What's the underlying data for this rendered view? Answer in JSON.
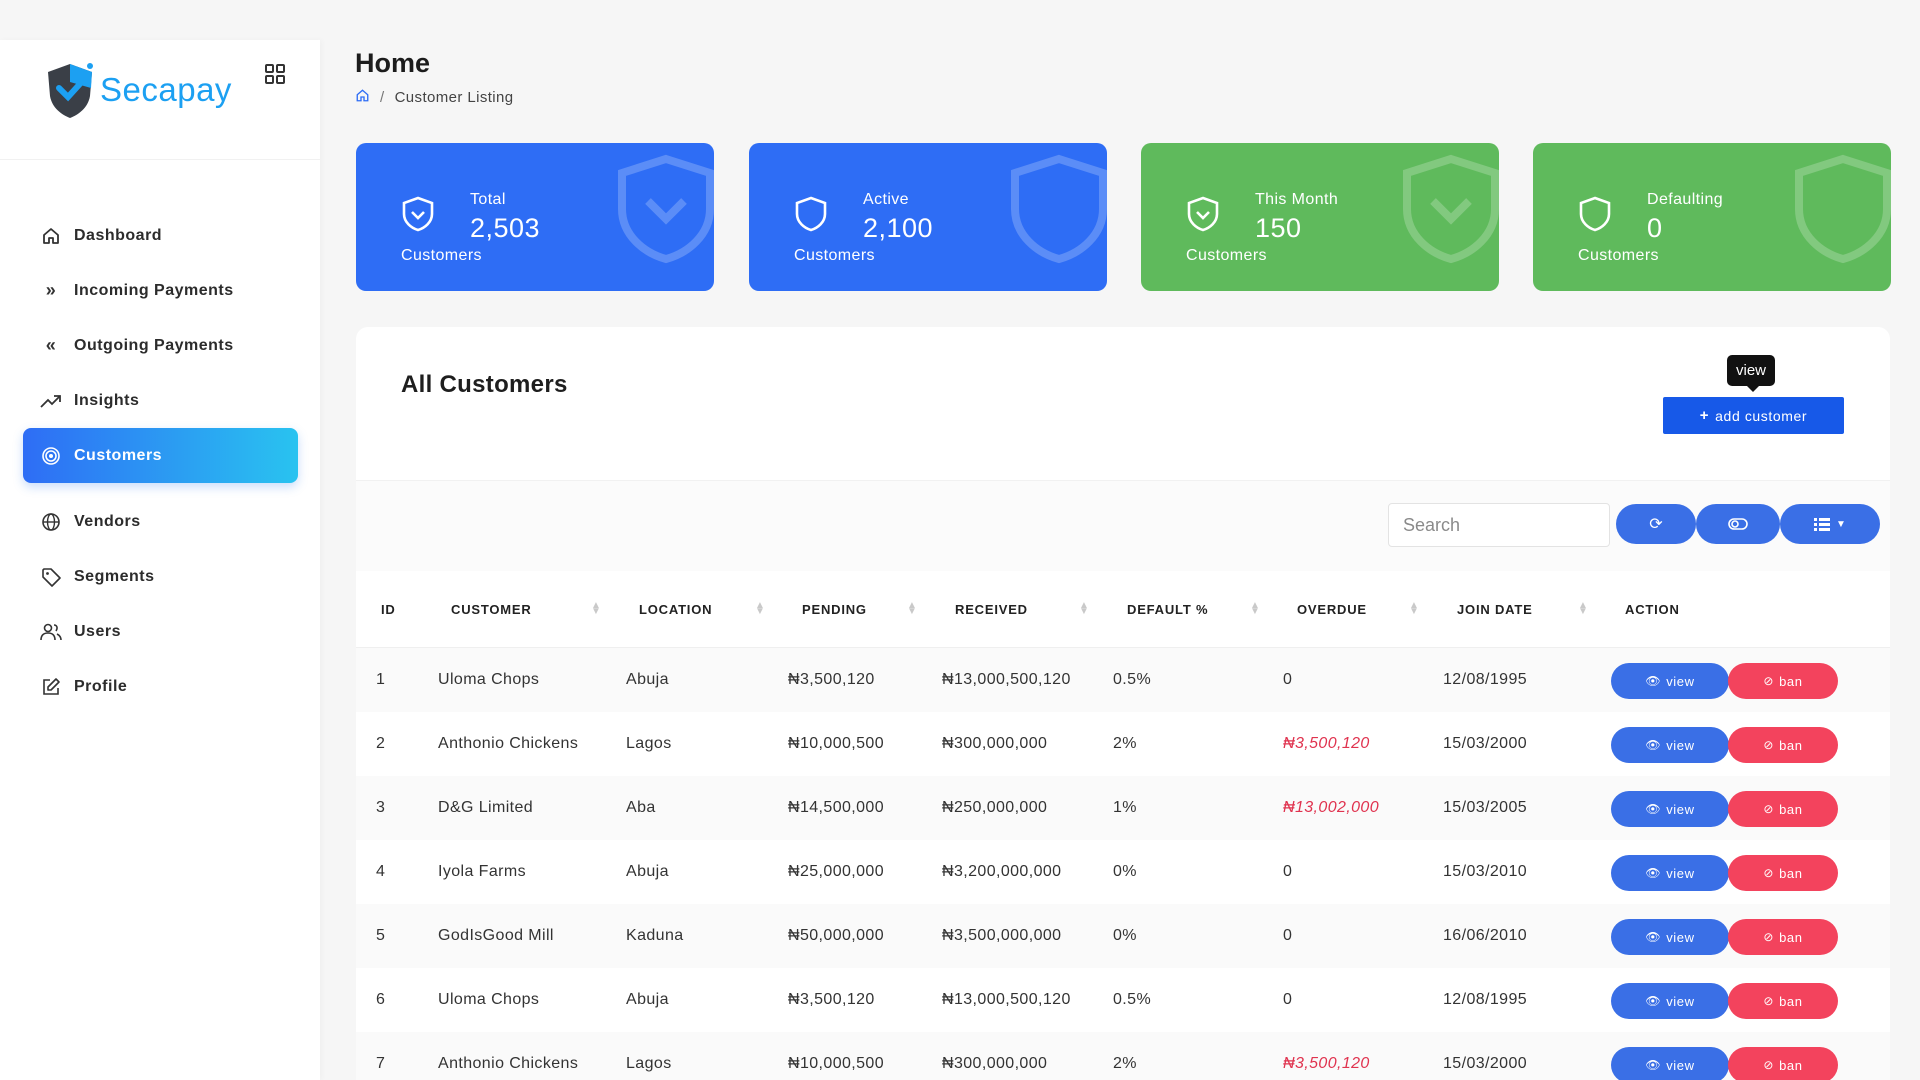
{
  "app": {
    "name": "Secapay"
  },
  "header": {
    "title": "Home",
    "breadcrumb_current": "Customer Listing",
    "breadcrumb_sep": "/"
  },
  "sidebar": {
    "items": [
      {
        "label": "Dashboard",
        "icon": "home-icon"
      },
      {
        "label": "Incoming Payments",
        "icon": "double-chevron-right-icon"
      },
      {
        "label": "Outgoing Payments",
        "icon": "double-chevron-left-icon"
      },
      {
        "label": "Insights",
        "icon": "trending-up-icon"
      },
      {
        "label": "Customers",
        "icon": "target-icon",
        "active": true
      },
      {
        "label": "Vendors",
        "icon": "globe-icon"
      },
      {
        "label": "Segments",
        "icon": "tag-icon"
      },
      {
        "label": "Users",
        "icon": "users-icon"
      },
      {
        "label": "Profile",
        "icon": "edit-icon"
      }
    ]
  },
  "stats": [
    {
      "label": "Total",
      "value": "2,503",
      "sub": "Customers",
      "color": "#2e6df5",
      "icon": "shield-check-icon"
    },
    {
      "label": "Active",
      "value": "2,100",
      "sub": "Customers",
      "color": "#2e6df5",
      "icon": "shield-icon"
    },
    {
      "label": "This Month",
      "value": "150",
      "sub": "Customers",
      "color": "#5fba5c",
      "icon": "shield-check-icon"
    },
    {
      "label": "Defaulting",
      "value": "0",
      "sub": "Customers",
      "color": "#5fba5c",
      "icon": "shield-icon"
    }
  ],
  "panel": {
    "title": "All Customers",
    "tooltip": "view",
    "add_button": "add customer",
    "search_placeholder": "Search"
  },
  "table": {
    "columns": [
      "ID",
      "CUSTOMER",
      "LOCATION",
      "PENDING",
      "RECEIVED",
      "DEFAULT %",
      "OVERDUE",
      "JOIN DATE",
      "ACTION"
    ],
    "view_label": "view",
    "ban_label": "ban",
    "rows": [
      {
        "id": "1",
        "customer": "Uloma Chops",
        "location": "Abuja",
        "pending": "₦3,500,120",
        "received": "₦13,000,500,120",
        "default": "0.5%",
        "overdue": "0",
        "overdue_alert": false,
        "join": "12/08/1995"
      },
      {
        "id": "2",
        "customer": "Anthonio Chickens",
        "location": "Lagos",
        "pending": "₦10,000,500",
        "received": "₦300,000,000",
        "default": "2%",
        "overdue": "₦3,500,120",
        "overdue_alert": true,
        "join": "15/03/2000"
      },
      {
        "id": "3",
        "customer": "D&G Limited",
        "location": "Aba",
        "pending": "₦14,500,000",
        "received": "₦250,000,000",
        "default": "1%",
        "overdue": "₦13,002,000",
        "overdue_alert": true,
        "join": "15/03/2005"
      },
      {
        "id": "4",
        "customer": "Iyola Farms",
        "location": "Abuja",
        "pending": "₦25,000,000",
        "received": "₦3,200,000,000",
        "default": "0%",
        "overdue": "0",
        "overdue_alert": false,
        "join": "15/03/2010"
      },
      {
        "id": "5",
        "customer": "GodIsGood Mill",
        "location": "Kaduna",
        "pending": "₦50,000,000",
        "received": "₦3,500,000,000",
        "default": "0%",
        "overdue": "0",
        "overdue_alert": false,
        "join": "16/06/2010"
      },
      {
        "id": "6",
        "customer": "Uloma Chops",
        "location": "Abuja",
        "pending": "₦3,500,120",
        "received": "₦13,000,500,120",
        "default": "0.5%",
        "overdue": "0",
        "overdue_alert": false,
        "join": "12/08/1995"
      },
      {
        "id": "7",
        "customer": "Anthonio Chickens",
        "location": "Lagos",
        "pending": "₦10,000,500",
        "received": "₦300,000,000",
        "default": "2%",
        "overdue": "₦3,500,120",
        "overdue_alert": true,
        "join": "15/03/2000"
      }
    ]
  }
}
